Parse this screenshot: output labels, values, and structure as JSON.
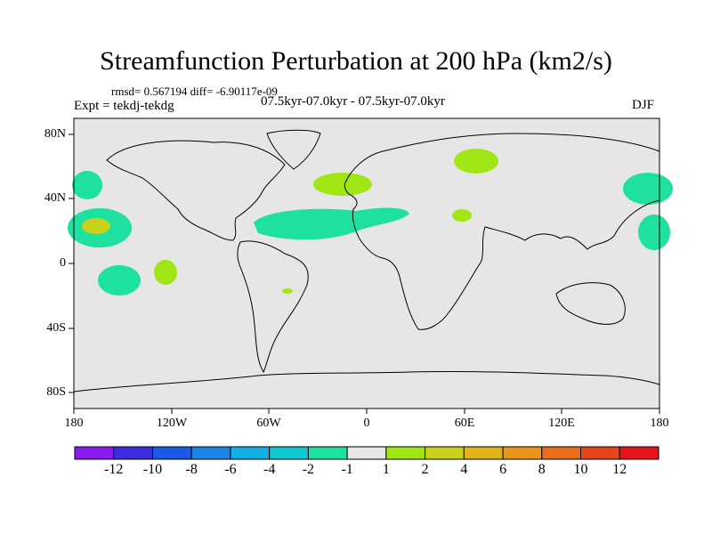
{
  "title": "Streamfunction Perturbation at 200 hPa (km2/s)",
  "stats": "rmsd= 0.567194 diff= -6.90117e-09",
  "expt": "Expt = tekdj-tekdg",
  "period": "07.5kyr-07.0kyr - 07.5kyr-07.0kyr",
  "season": "DJF",
  "lat_labels": [
    "80N",
    "40N",
    "0",
    "40S",
    "80S"
  ],
  "lon_labels": [
    "180",
    "120W",
    "60W",
    "0",
    "60E",
    "120E",
    "180"
  ],
  "colorbar": {
    "labels": [
      "-12",
      "-10",
      "-8",
      "-6",
      "-4",
      "-2",
      "-1",
      "1",
      "2",
      "4",
      "6",
      "8",
      "10",
      "12"
    ],
    "colors": [
      "#8a1cf0",
      "#3c2ee0",
      "#1c5ae6",
      "#1c86e6",
      "#14aee0",
      "#10c8d0",
      "#1ee0a0",
      "#e6e6e6",
      "#a0e614",
      "#c8d21c",
      "#e0b41c",
      "#e6961c",
      "#e66e1c",
      "#e6461c",
      "#e6141c"
    ]
  },
  "fill_colors": {
    "ocean_land": "#e6e6e6",
    "neg_1_2": "#1ee0a0",
    "pos_1_2": "#a0e614",
    "pos_2_4": "#c8d21c"
  }
}
